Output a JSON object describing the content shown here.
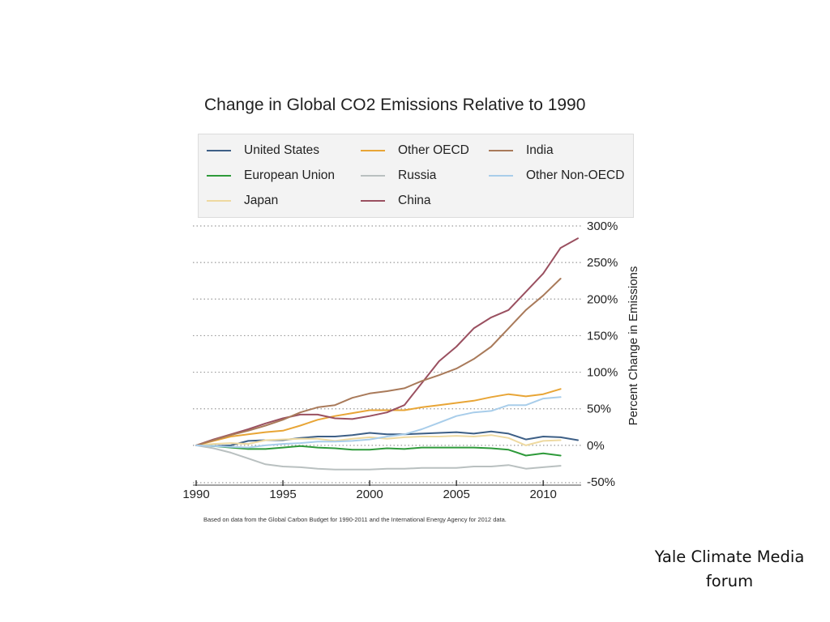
{
  "chart_data": {
    "type": "line",
    "title": "Change in Global CO2 Emissions Relative to 1990",
    "xlabel": "",
    "ylabel": "Percent Change in Emissions",
    "xlim": [
      1990,
      2012
    ],
    "ylim": [
      -50,
      300
    ],
    "x_ticks": [
      "1990",
      "1995",
      "2000",
      "2005",
      "2010"
    ],
    "x_tick_values": [
      1990,
      1995,
      2000,
      2005,
      2010
    ],
    "y_ticks": [
      "300%",
      "250%",
      "200%",
      "150%",
      "100%",
      "50%",
      "0%",
      "-50%"
    ],
    "y_tick_values": [
      300,
      250,
      200,
      150,
      100,
      50,
      0,
      -50
    ],
    "grid": "horizontal-dotted",
    "y_axis_side": "right",
    "legend_position": "top",
    "series": [
      {
        "name": "United States",
        "color": "#3d5f86",
        "x": [
          1990,
          1991,
          1992,
          1993,
          1994,
          1995,
          1996,
          1997,
          1998,
          1999,
          2000,
          2001,
          2002,
          2003,
          2004,
          2005,
          2006,
          2007,
          2008,
          2009,
          2010,
          2011,
          2012
        ],
        "values": [
          0,
          -1,
          0,
          6,
          7,
          7,
          10,
          12,
          12,
          14,
          17,
          15,
          15,
          16,
          17,
          18,
          16,
          19,
          16,
          8,
          12,
          11,
          7
        ]
      },
      {
        "name": "European Union",
        "color": "#2e9a3a",
        "x": [
          1990,
          1991,
          1992,
          1993,
          1994,
          1995,
          1996,
          1997,
          1998,
          1999,
          2000,
          2001,
          2002,
          2003,
          2004,
          2005,
          2006,
          2007,
          2008,
          2009,
          2010,
          2011
        ],
        "values": [
          0,
          -1,
          -3,
          -5,
          -5,
          -3,
          -1,
          -3,
          -4,
          -6,
          -6,
          -4,
          -5,
          -3,
          -3,
          -3,
          -3,
          -4,
          -6,
          -14,
          -11,
          -14
        ]
      },
      {
        "name": "Japan",
        "color": "#eed9a0",
        "x": [
          1990,
          1991,
          1992,
          1993,
          1994,
          1995,
          1996,
          1997,
          1998,
          1999,
          2000,
          2001,
          2002,
          2003,
          2004,
          2005,
          2006,
          2007,
          2008,
          2009,
          2010,
          2011
        ],
        "values": [
          0,
          2,
          3,
          2,
          7,
          8,
          9,
          9,
          6,
          9,
          11,
          9,
          11,
          12,
          12,
          13,
          12,
          14,
          10,
          0,
          6,
          7
        ]
      },
      {
        "name": "Other OECD",
        "color": "#e8a536",
        "x": [
          1990,
          1991,
          1992,
          1993,
          1994,
          1995,
          1996,
          1997,
          1998,
          1999,
          2000,
          2001,
          2002,
          2003,
          2004,
          2005,
          2006,
          2007,
          2008,
          2009,
          2010,
          2011
        ],
        "values": [
          0,
          6,
          12,
          15,
          18,
          20,
          27,
          35,
          40,
          44,
          48,
          48,
          48,
          52,
          55,
          58,
          61,
          66,
          70,
          67,
          70,
          77
        ]
      },
      {
        "name": "Russia",
        "color": "#b9c0c0",
        "x": [
          1990,
          1991,
          1992,
          1993,
          1994,
          1995,
          1996,
          1997,
          1998,
          1999,
          2000,
          2001,
          2002,
          2003,
          2004,
          2005,
          2006,
          2007,
          2008,
          2009,
          2010,
          2011
        ],
        "values": [
          0,
          -4,
          -10,
          -18,
          -26,
          -29,
          -30,
          -32,
          -33,
          -33,
          -33,
          -32,
          -32,
          -31,
          -31,
          -31,
          -29,
          -29,
          -27,
          -32,
          -30,
          -28
        ]
      },
      {
        "name": "China",
        "color": "#9a5060",
        "x": [
          1990,
          1991,
          1992,
          1993,
          1994,
          1995,
          1996,
          1997,
          1998,
          1999,
          2000,
          2001,
          2002,
          2003,
          2004,
          2005,
          2006,
          2007,
          2008,
          2009,
          2010,
          2011,
          2012
        ],
        "values": [
          0,
          8,
          15,
          22,
          30,
          37,
          42,
          42,
          37,
          36,
          40,
          45,
          55,
          85,
          115,
          135,
          160,
          175,
          185,
          210,
          235,
          270,
          283
        ]
      },
      {
        "name": "India",
        "color": "#a97a5a",
        "x": [
          1990,
          1991,
          1992,
          1993,
          1994,
          1995,
          1996,
          1997,
          1998,
          1999,
          2000,
          2001,
          2002,
          2003,
          2004,
          2005,
          2006,
          2007,
          2008,
          2009,
          2010,
          2011
        ],
        "values": [
          0,
          7,
          14,
          20,
          27,
          35,
          45,
          52,
          55,
          65,
          71,
          74,
          78,
          88,
          96,
          105,
          118,
          135,
          160,
          185,
          205,
          228
        ]
      },
      {
        "name": "Other Non-OECD",
        "color": "#a8cdea",
        "x": [
          1990,
          1991,
          1992,
          1993,
          1994,
          1995,
          1996,
          1997,
          1998,
          1999,
          2000,
          2001,
          2002,
          2003,
          2004,
          2005,
          2006,
          2007,
          2008,
          2009,
          2010,
          2011
        ],
        "values": [
          0,
          -1,
          -2,
          -3,
          0,
          2,
          3,
          5,
          5,
          6,
          8,
          12,
          15,
          22,
          31,
          40,
          45,
          47,
          55,
          55,
          64,
          66
        ]
      }
    ],
    "source_note": "Based on data from the Global Carbon Budget for 1990-2011 and the International Energy Agency for 2012 data."
  },
  "legend": {
    "items": [
      {
        "label": "United States",
        "color": "#3d5f86"
      },
      {
        "label": "European Union",
        "color": "#2e9a3a"
      },
      {
        "label": "Japan",
        "color": "#eed9a0"
      },
      {
        "label": "Other OECD",
        "color": "#e8a536"
      },
      {
        "label": "Russia",
        "color": "#b9c0c0"
      },
      {
        "label": "China",
        "color": "#9a5060"
      },
      {
        "label": "India",
        "color": "#a97a5a"
      },
      {
        "label": "Other Non-OECD",
        "color": "#a8cdea"
      }
    ]
  },
  "credit": {
    "line1": "Yale Climate Media",
    "line2": "forum"
  }
}
